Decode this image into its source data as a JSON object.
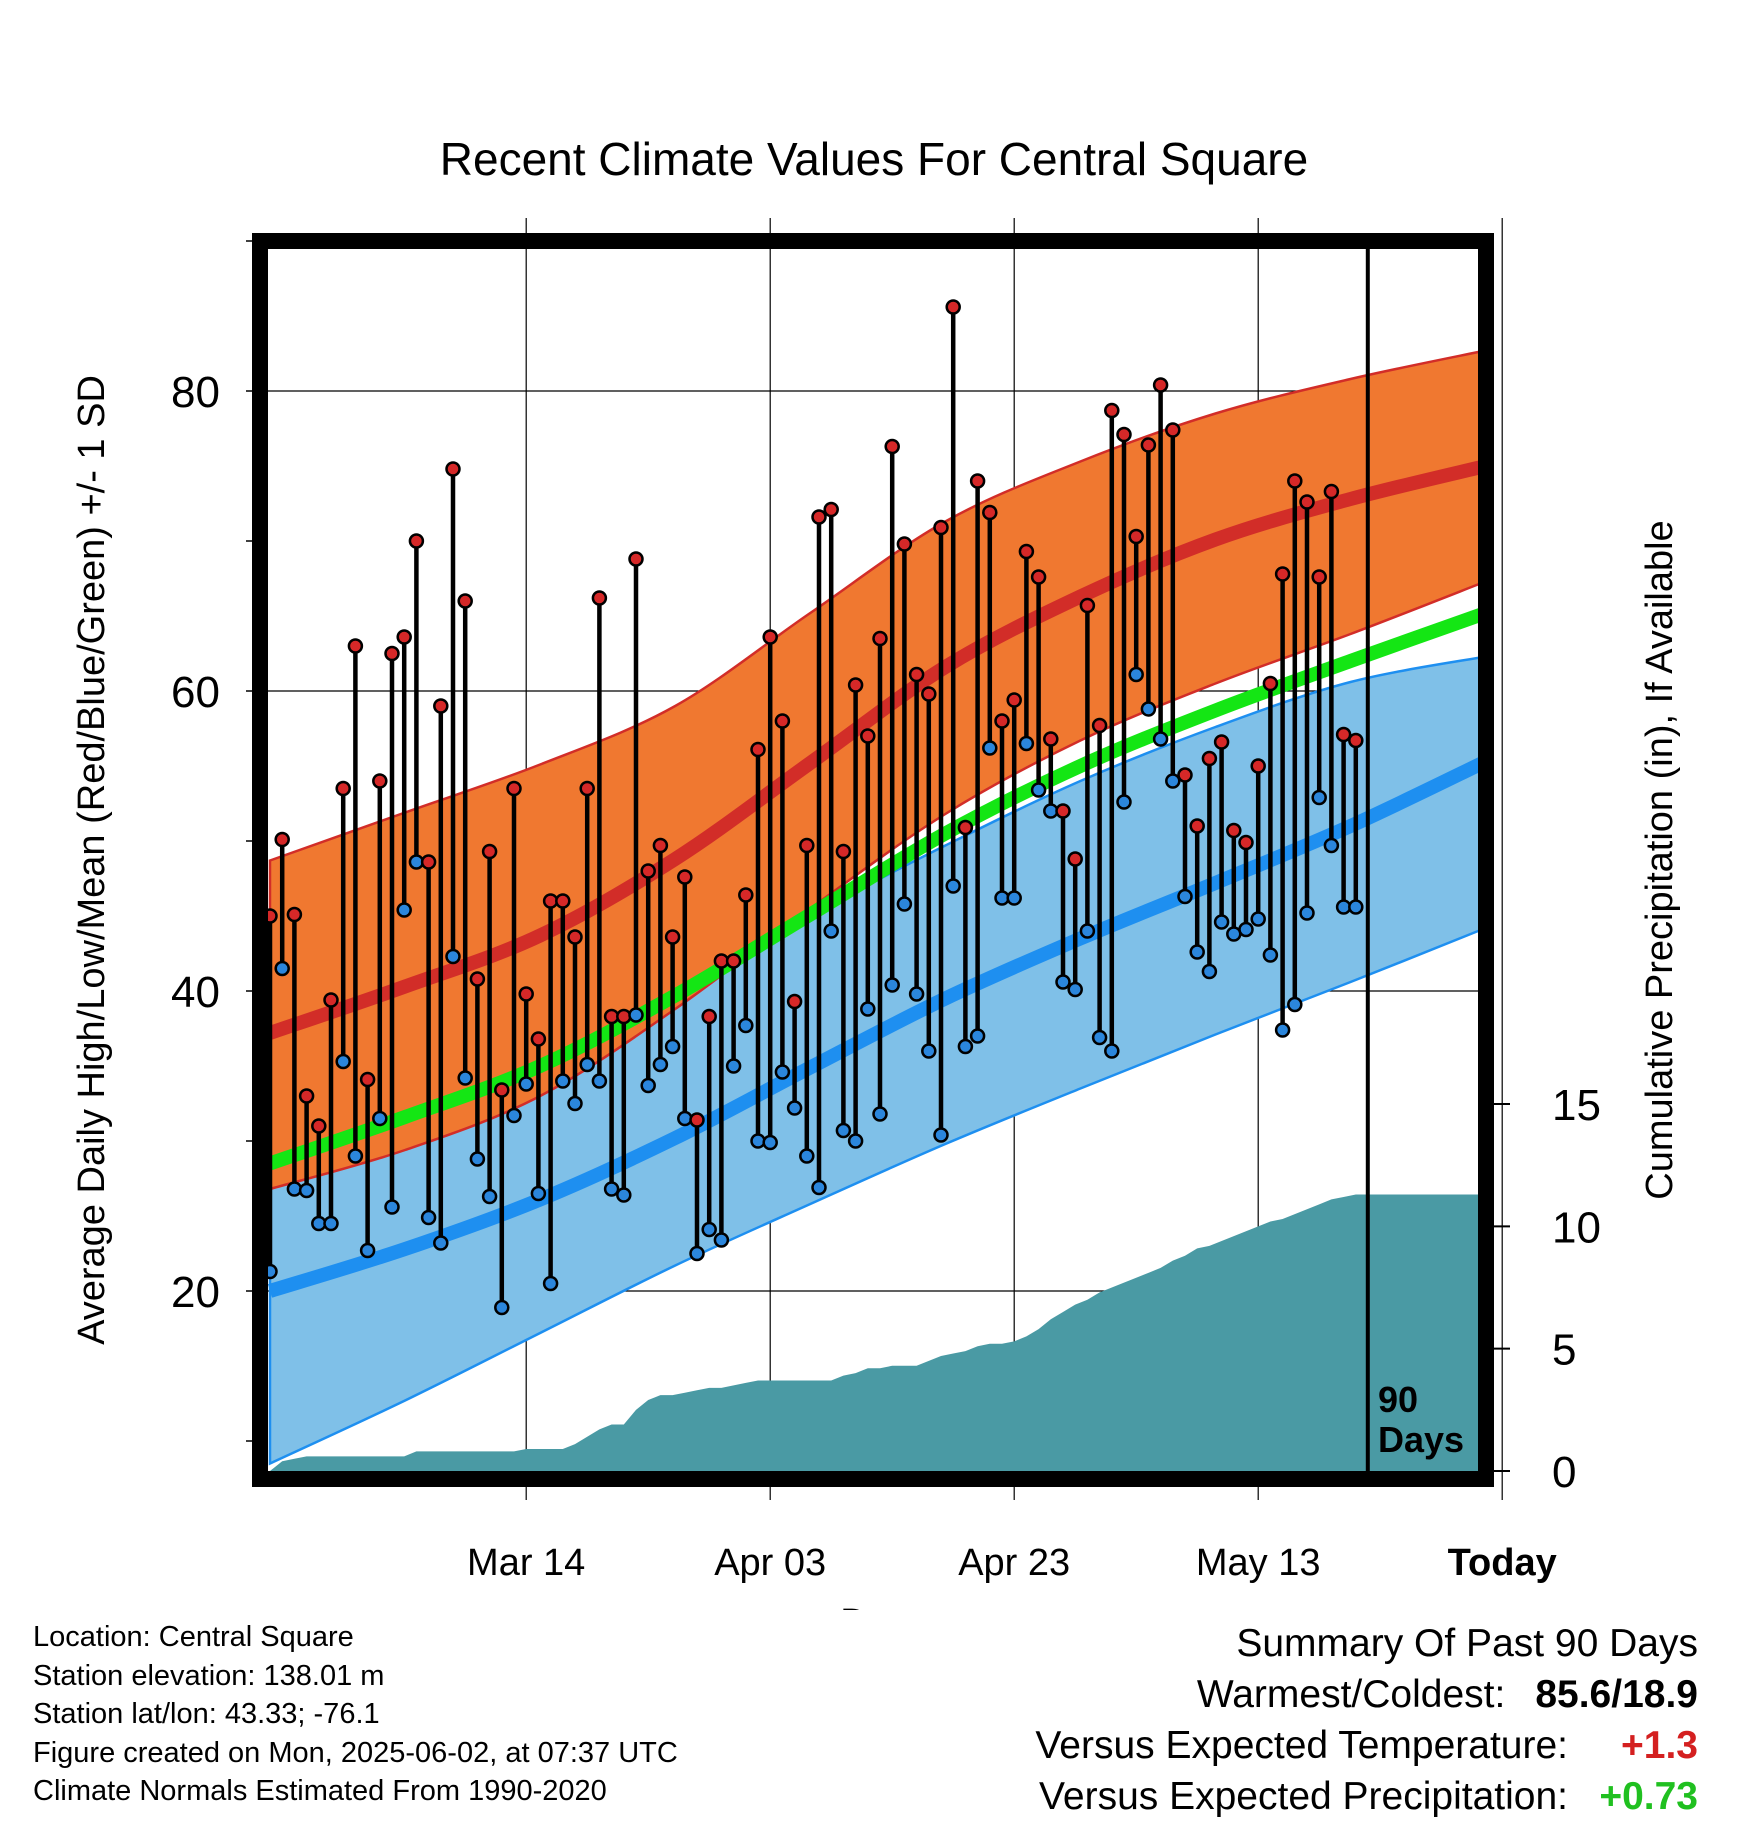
{
  "chart_data": {
    "type": "line",
    "title": "Recent Climate Values For Central Square",
    "xlabel": "Day",
    "ylabel": "Average Daily High/Low/Mean (Red/Blue/Green) +/- 1 SD",
    "y2label": "Cumulative Precipitation (in), If Available",
    "x_tick_labels": [
      "Mar 14",
      "Apr 03",
      "Apr 23",
      "May 13",
      "Today"
    ],
    "y_ticks": [
      20,
      40,
      60,
      80
    ],
    "y2_ticks": [
      0,
      5,
      10,
      15
    ],
    "ylim": [
      8,
      90
    ],
    "y2lim": [
      0,
      15
    ],
    "window_label": "90 Days",
    "x_range_days": [
      -89,
      9
    ],
    "grid": true,
    "colors": {
      "high_band": "#f07830",
      "high_mean": "#d22d28",
      "low_band": "#7fc0e8",
      "low_mean": "#1e8ff0",
      "mean_line": "#14e614",
      "precip": "#4a9aa4",
      "high_marker": "#d62828",
      "low_marker": "#2b86dc"
    },
    "normal_high": [
      37.2,
      40.3,
      43.7,
      48.8,
      55.2,
      61.6,
      66.3,
      70.1,
      72.8,
      75.0
    ],
    "normal_high_plus_sd": [
      48.7,
      51.9,
      55.1,
      59.0,
      65.2,
      71.3,
      75.3,
      78.5,
      80.8,
      82.7
    ],
    "normal_high_minus_sd": [
      26.8,
      29.4,
      33.0,
      38.8,
      45.5,
      51.8,
      56.7,
      60.5,
      63.8,
      67.3
    ],
    "normal_low": [
      20.0,
      22.8,
      26.1,
      30.2,
      34.9,
      39.5,
      43.5,
      47.2,
      51.0,
      55.3
    ],
    "normal_low_plus_sd": [
      31.5,
      33.2,
      35.0,
      40.6,
      45.1,
      49.7,
      54.0,
      57.6,
      60.6,
      62.3
    ],
    "normal_low_minus_sd": [
      8.5,
      12.7,
      17.2,
      21.7,
      25.8,
      29.8,
      33.5,
      37.1,
      40.6,
      44.2
    ],
    "normal_mean": [
      28.5,
      31.6,
      35.0,
      39.7,
      45.1,
      50.5,
      55.0,
      58.7,
      62.0,
      65.2
    ],
    "daily_high": [
      45.0,
      50.1,
      45.1,
      33.0,
      31.0,
      39.4,
      53.5,
      63.0,
      34.1,
      54.0,
      62.5,
      63.6,
      70.0,
      48.6,
      59.0,
      74.8,
      66.0,
      40.8,
      49.3,
      33.4,
      53.5,
      39.8,
      36.8,
      46.0,
      46.0,
      43.6,
      53.5,
      66.2,
      38.3,
      38.3,
      68.8,
      48.0,
      49.7,
      43.6,
      47.6,
      31.4,
      38.3,
      42.0,
      42.0,
      46.4,
      56.1,
      63.6,
      58.0,
      39.3,
      49.7,
      71.6,
      72.1,
      49.3,
      60.4,
      57.0,
      63.5,
      76.3,
      69.8,
      61.1,
      59.8,
      70.9,
      85.6,
      50.9,
      74.0,
      71.9,
      58.0,
      59.4,
      69.3,
      67.6,
      56.8,
      52.0,
      48.8,
      65.7,
      57.7,
      78.7,
      77.1,
      70.3,
      76.4,
      80.4,
      77.4,
      54.4,
      51.0,
      55.5,
      56.6,
      50.7,
      49.9,
      55.0,
      60.5,
      67.8,
      74.0,
      72.6,
      67.6,
      73.3,
      57.1,
      56.7
    ],
    "daily_low": [
      21.3,
      41.5,
      26.8,
      26.7,
      24.5,
      24.5,
      35.3,
      29.0,
      22.7,
      31.5,
      25.6,
      45.4,
      48.6,
      24.9,
      23.2,
      42.3,
      34.2,
      28.8,
      26.3,
      18.9,
      31.7,
      33.8,
      26.5,
      20.5,
      34.0,
      32.5,
      35.1,
      34.0,
      26.8,
      26.4,
      38.4,
      33.7,
      35.1,
      36.3,
      31.5,
      22.5,
      24.1,
      23.4,
      35.0,
      37.7,
      30.0,
      29.9,
      34.6,
      32.2,
      29.0,
      26.9,
      44.0,
      30.7,
      30.0,
      38.8,
      31.8,
      40.4,
      45.8,
      39.8,
      36.0,
      30.4,
      47.0,
      36.3,
      37.0,
      56.2,
      46.2,
      46.2,
      56.5,
      53.4,
      52.0,
      40.6,
      40.1,
      44.0,
      36.9,
      36.0,
      52.6,
      61.1,
      58.8,
      56.8,
      54.0,
      46.3,
      42.6,
      41.3,
      44.6,
      43.8,
      44.1,
      44.8,
      42.4,
      37.4,
      39.1,
      45.2,
      52.9,
      49.7,
      45.6,
      45.6
    ],
    "cumulative_precip": [
      0.0,
      0.4,
      0.5,
      0.6,
      0.6,
      0.6,
      0.6,
      0.6,
      0.6,
      0.6,
      0.6,
      0.6,
      0.8,
      0.8,
      0.8,
      0.8,
      0.8,
      0.8,
      0.8,
      0.8,
      0.8,
      0.9,
      0.9,
      0.9,
      0.9,
      1.1,
      1.4,
      1.7,
      1.9,
      1.9,
      2.5,
      2.9,
      3.1,
      3.1,
      3.2,
      3.3,
      3.4,
      3.4,
      3.5,
      3.6,
      3.7,
      3.7,
      3.7,
      3.7,
      3.7,
      3.7,
      3.7,
      3.9,
      4.0,
      4.2,
      4.2,
      4.3,
      4.3,
      4.3,
      4.5,
      4.7,
      4.8,
      4.9,
      5.1,
      5.2,
      5.2,
      5.3,
      5.5,
      5.8,
      6.2,
      6.5,
      6.8,
      7.0,
      7.3,
      7.5,
      7.7,
      7.9,
      8.1,
      8.3,
      8.6,
      8.8,
      9.1,
      9.2,
      9.4,
      9.6,
      9.8,
      10.0,
      10.2,
      10.3,
      10.5,
      10.7,
      10.9,
      11.1,
      11.2,
      11.3
    ]
  },
  "info": {
    "location": "Location: Central Square",
    "elevation": "Station elevation: 138.01 m",
    "latlon": "Station lat/lon: 43.33; -76.1",
    "created": "Figure created on Mon, 2025-06-02, at 07:37 UTC",
    "normals": "Climate Normals Estimated From 1990-2020"
  },
  "summary": {
    "title": "Summary Of Past 90 Days",
    "warmest_label": "Warmest/Coldest:",
    "warmest_value": "85.6/18.9",
    "temp_label": "Versus Expected Temperature:",
    "temp_value": "+1.3",
    "temp_color": "#d42020",
    "precip_label": "Versus Expected Precipitation:",
    "precip_value": "+0.73",
    "precip_color": "#20c020"
  }
}
